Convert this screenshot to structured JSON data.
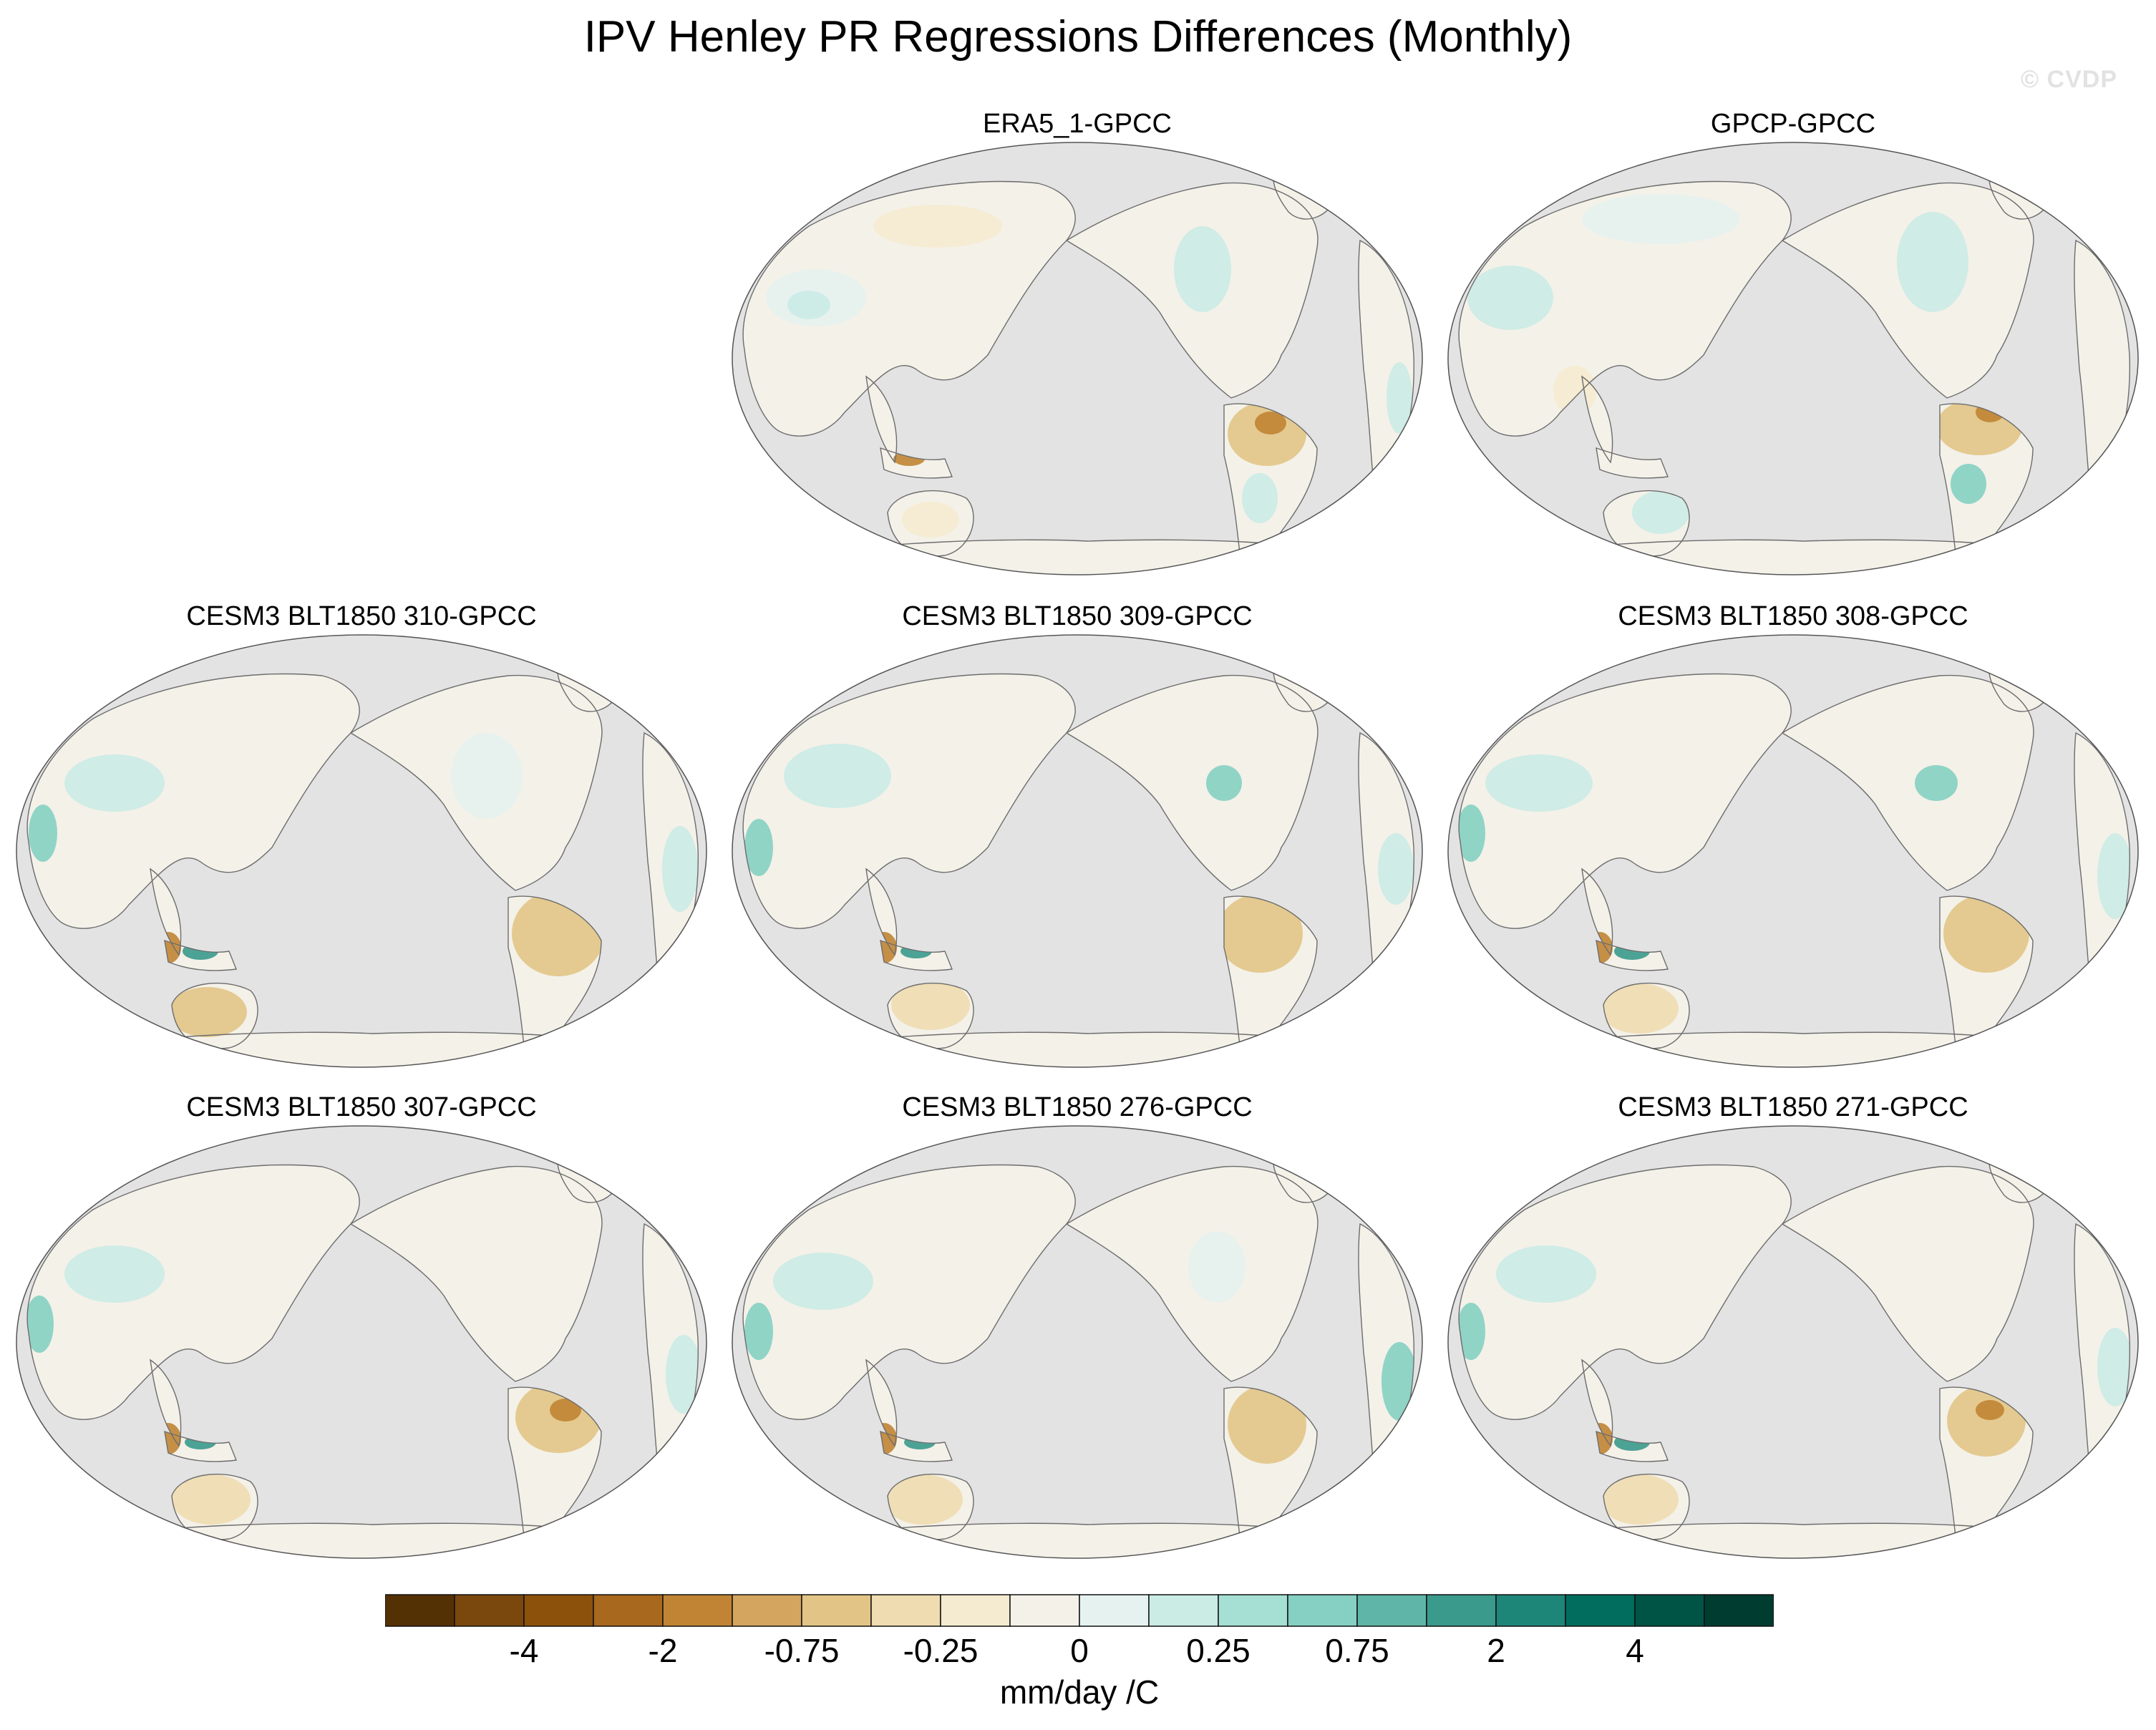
{
  "title": "IPV Henley PR Regressions Differences (Monthly)",
  "watermark": "© CVDP",
  "chart_data": {
    "type": "map-grid",
    "projection": "Robinson (Pacific-centered)",
    "variable": "PR regression difference",
    "panels": [
      {
        "id": "era5",
        "title": "ERA5_1-GPCC",
        "row": 0,
        "col": 1
      },
      {
        "id": "gpcp",
        "title": "GPCP-GPCC",
        "row": 0,
        "col": 2
      },
      {
        "id": "m310",
        "title": "CESM3 BLT1850 310-GPCC",
        "row": 1,
        "col": 0
      },
      {
        "id": "m309",
        "title": "CESM3 BLT1850 309-GPCC",
        "row": 1,
        "col": 1
      },
      {
        "id": "m308",
        "title": "CESM3 BLT1850 308-GPCC",
        "row": 1,
        "col": 2
      },
      {
        "id": "m307",
        "title": "CESM3 BLT1850 307-GPCC",
        "row": 2,
        "col": 0
      },
      {
        "id": "m276",
        "title": "CESM3 BLT1850 276-GPCC",
        "row": 2,
        "col": 1
      },
      {
        "id": "m271",
        "title": "CESM3 BLT1850 271-GPCC",
        "row": 2,
        "col": 2
      }
    ],
    "colorbar": {
      "units": "mm/day /C",
      "colors": [
        "#543005",
        "#7a470d",
        "#8c510a",
        "#a8681e",
        "#c08434",
        "#d3a55e",
        "#e2c586",
        "#efdcb0",
        "#f5ebd0",
        "#f4f1e9",
        "#e5f2f0",
        "#cbebe5",
        "#a6dfd4",
        "#85d0c2",
        "#5fb6a8",
        "#3a9a8c",
        "#1e8579",
        "#006d5e",
        "#005446",
        "#003c30"
      ],
      "tick_labels": [
        "-4",
        "-2",
        "-0.75",
        "-0.25",
        "0",
        "0.25",
        "0.75",
        "2",
        "4"
      ],
      "tick_boundaries": [
        2,
        4,
        6,
        8,
        10,
        12,
        14,
        16,
        18
      ]
    }
  }
}
